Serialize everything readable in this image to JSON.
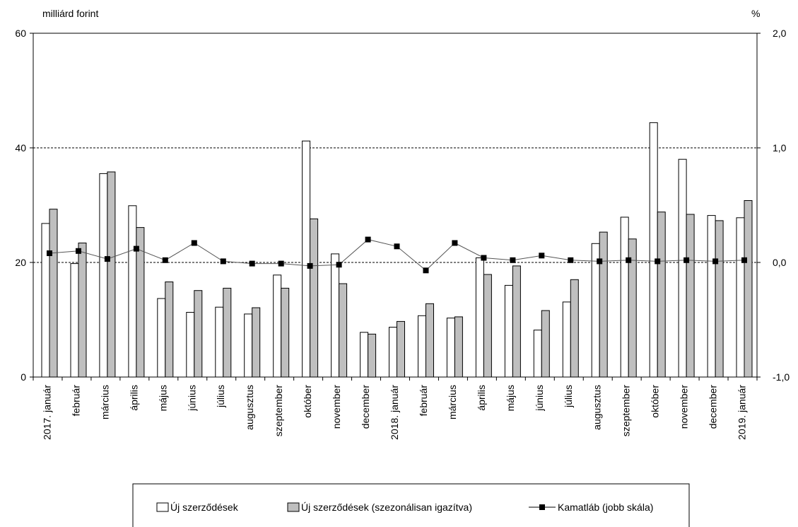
{
  "chart_data": {
    "type": "bar",
    "left_unit": "milliárd forint",
    "right_unit": "%",
    "categories": [
      "2017. január",
      "február",
      "március",
      "április",
      "május",
      "június",
      "július",
      "augusztus",
      "szeptember",
      "október",
      "november",
      "december",
      "2018. január",
      "február",
      "március",
      "április",
      "május",
      "június",
      "július",
      "augusztus",
      "szeptember",
      "október",
      "november",
      "december",
      "2019. január"
    ],
    "y_left": {
      "ylim": [
        0,
        60
      ],
      "ticks": [
        0,
        20,
        40,
        60
      ],
      "tick_labels": [
        "0",
        "20",
        "40",
        "60"
      ]
    },
    "y_right": {
      "ylim": [
        -1.0,
        2.0
      ],
      "ticks": [
        -1.0,
        0.0,
        1.0,
        2.0
      ],
      "tick_labels": [
        "-1,0",
        "0,0",
        "1,0",
        "2,0"
      ]
    },
    "reference_lines_left": [
      20,
      40
    ],
    "series": [
      {
        "name": "Új szerződések",
        "kind": "bar",
        "axis": "left",
        "color": "#ffffff",
        "values": [
          26.8,
          19.8,
          35.5,
          29.9,
          13.7,
          11.3,
          12.2,
          11.0,
          17.8,
          41.2,
          21.5,
          7.8,
          8.7,
          10.7,
          10.3,
          20.8,
          16.0,
          8.2,
          13.1,
          23.3,
          27.9,
          44.4,
          38.0,
          28.2,
          27.8
        ]
      },
      {
        "name": "Új szerződések (szezonálisan igazítva)",
        "kind": "bar",
        "axis": "left",
        "color": "#bfbfbf",
        "values": [
          29.3,
          23.4,
          35.8,
          26.1,
          16.6,
          15.1,
          15.5,
          12.1,
          15.5,
          27.6,
          16.3,
          7.5,
          9.7,
          12.8,
          10.5,
          17.9,
          19.4,
          11.6,
          17.0,
          25.3,
          24.1,
          28.8,
          28.4,
          27.3,
          30.8
        ]
      },
      {
        "name": "Kamatláb (jobb skála)",
        "kind": "line",
        "axis": "right",
        "color": "#000000",
        "values": [
          0.08,
          0.1,
          0.03,
          0.12,
          0.02,
          0.17,
          0.01,
          -0.01,
          -0.01,
          -0.03,
          -0.02,
          0.2,
          0.14,
          -0.07,
          0.17,
          0.04,
          0.02,
          0.06,
          0.02,
          0.01,
          0.02,
          0.01,
          0.02,
          0.01,
          0.02
        ]
      }
    ],
    "legend_position": "bottom"
  }
}
